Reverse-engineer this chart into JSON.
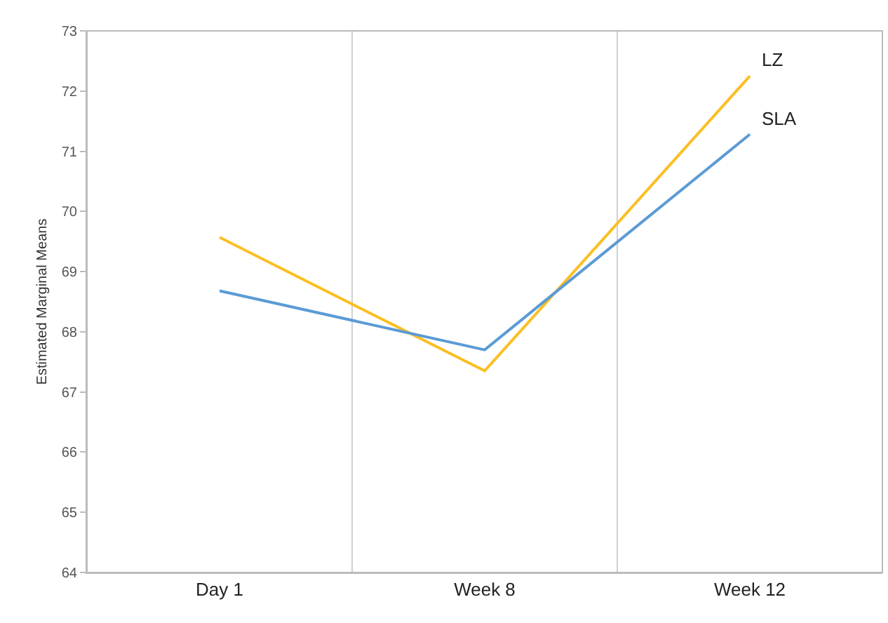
{
  "chart_data": {
    "type": "line",
    "ylabel": "Estimated Marginal Means",
    "categories": [
      "Day 1",
      "Week 8",
      "Week 12"
    ],
    "series": [
      {
        "name": "LZ",
        "color": "#fbbf24",
        "values": [
          69.57,
          67.35,
          72.25
        ]
      },
      {
        "name": "SLA",
        "color": "#5b9bd5",
        "values": [
          68.68,
          67.7,
          71.28
        ]
      }
    ],
    "ylim": [
      64,
      73
    ],
    "yticks": [
      64,
      65,
      66,
      67,
      68,
      69,
      70,
      71,
      72,
      73
    ],
    "grid": "x",
    "legend": false,
    "marker": "none",
    "line_style": "solid"
  }
}
